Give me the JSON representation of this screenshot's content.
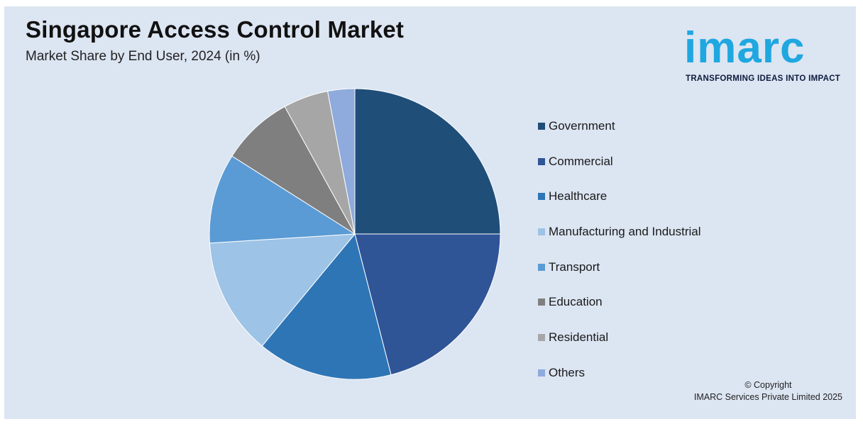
{
  "header": {
    "title": "Singapore Access Control Market",
    "subtitle": "Market Share by End User, 2024 (in %)"
  },
  "logo": {
    "name": "imarc",
    "tagline": "TRANSFORMING IDEAS INTO IMPACT",
    "color": "#1fa7e0"
  },
  "footer": {
    "copyright": "© Copyright",
    "company": "IMARC Services Private Limited 2025"
  },
  "chart_data": {
    "type": "pie",
    "title": "Singapore Access Control Market",
    "subtitle": "Market Share by End User, 2024 (in %)",
    "legend_position": "right",
    "start_angle": "12 o'clock, clockwise",
    "categories": [
      "Government",
      "Commercial",
      "Healthcare",
      "Manufacturing and Industrial",
      "Transport",
      "Education",
      "Residential",
      "Others"
    ],
    "values": [
      25,
      21,
      15,
      13,
      10,
      8,
      5,
      3
    ],
    "colors": [
      "#1f4e79",
      "#2f5597",
      "#2e75b6",
      "#9dc3e6",
      "#5b9bd5",
      "#7f7f7f",
      "#a6a6a6",
      "#8faadc"
    ]
  }
}
